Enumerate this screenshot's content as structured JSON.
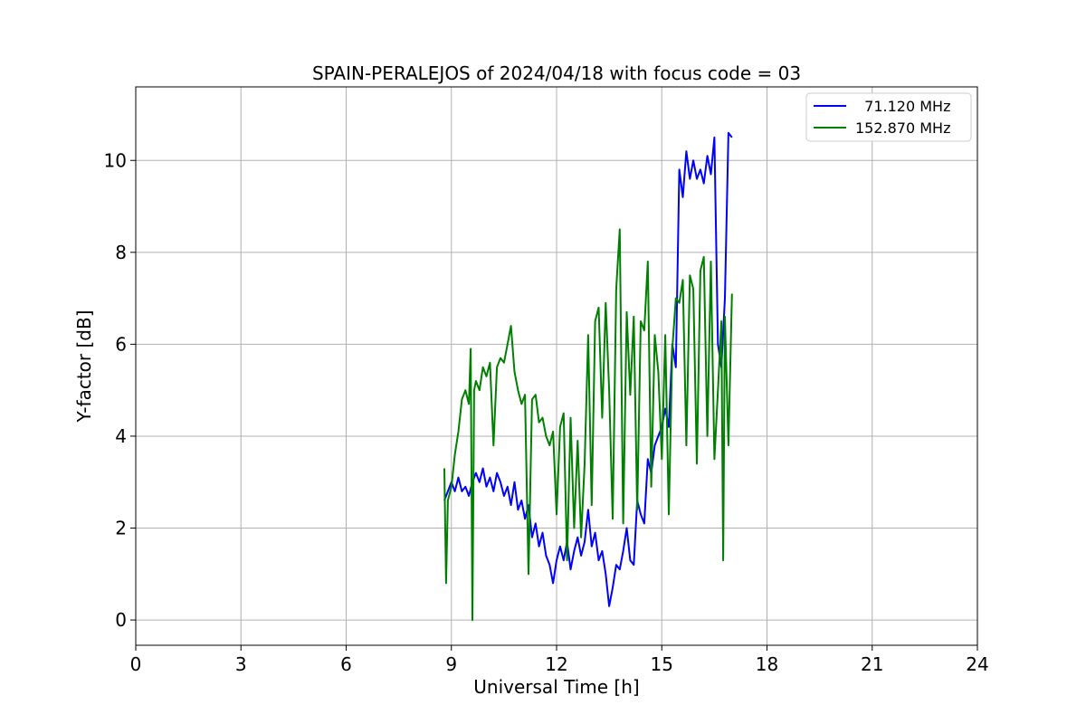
{
  "chart_data": {
    "type": "line",
    "title": "SPAIN-PERALEJOS of 2024/04/18 with focus code = 03",
    "xlabel": "Universal Time [h]",
    "ylabel": "Y-factor [dB]",
    "xlim": [
      0,
      24
    ],
    "ylim": [
      -0.55,
      11.6
    ],
    "xticks": [
      0,
      3,
      6,
      9,
      12,
      15,
      18,
      21,
      24
    ],
    "yticks": [
      0,
      2,
      4,
      6,
      8,
      10
    ],
    "grid": true,
    "legend_position": "top-right",
    "series": [
      {
        "name": "  71.120 MHz",
        "color": "#0000ff",
        "points": [
          [
            8.8,
            2.6
          ],
          [
            8.9,
            2.8
          ],
          [
            9.0,
            3.0
          ],
          [
            9.1,
            2.8
          ],
          [
            9.2,
            3.1
          ],
          [
            9.3,
            2.8
          ],
          [
            9.4,
            2.9
          ],
          [
            9.5,
            2.7
          ],
          [
            9.6,
            3.0
          ],
          [
            9.7,
            3.2
          ],
          [
            9.8,
            3.0
          ],
          [
            9.9,
            3.3
          ],
          [
            10.0,
            2.9
          ],
          [
            10.1,
            3.1
          ],
          [
            10.2,
            2.8
          ],
          [
            10.3,
            3.2
          ],
          [
            10.4,
            3.0
          ],
          [
            10.5,
            2.7
          ],
          [
            10.6,
            2.9
          ],
          [
            10.7,
            2.5
          ],
          [
            10.8,
            3.0
          ],
          [
            10.9,
            2.4
          ],
          [
            11.0,
            2.6
          ],
          [
            11.1,
            2.2
          ],
          [
            11.2,
            2.5
          ],
          [
            11.3,
            1.8
          ],
          [
            11.4,
            2.1
          ],
          [
            11.5,
            1.6
          ],
          [
            11.6,
            1.9
          ],
          [
            11.7,
            1.4
          ],
          [
            11.8,
            1.2
          ],
          [
            11.9,
            0.8
          ],
          [
            12.0,
            1.3
          ],
          [
            12.1,
            1.6
          ],
          [
            12.2,
            1.3
          ],
          [
            12.3,
            1.7
          ],
          [
            12.4,
            1.1
          ],
          [
            12.5,
            1.5
          ],
          [
            12.6,
            1.8
          ],
          [
            12.7,
            1.4
          ],
          [
            12.8,
            1.7
          ],
          [
            12.9,
            2.4
          ],
          [
            13.0,
            1.6
          ],
          [
            13.1,
            1.9
          ],
          [
            13.2,
            1.3
          ],
          [
            13.3,
            1.5
          ],
          [
            13.4,
            1.0
          ],
          [
            13.5,
            0.3
          ],
          [
            13.6,
            0.7
          ],
          [
            13.7,
            1.2
          ],
          [
            13.8,
            1.1
          ],
          [
            13.9,
            1.5
          ],
          [
            14.0,
            2.0
          ],
          [
            14.1,
            1.3
          ],
          [
            14.2,
            1.2
          ],
          [
            14.3,
            2.6
          ],
          [
            14.4,
            2.3
          ],
          [
            14.5,
            2.1
          ],
          [
            14.6,
            3.5
          ],
          [
            14.7,
            3.2
          ],
          [
            14.8,
            3.8
          ],
          [
            14.9,
            4.0
          ],
          [
            15.0,
            4.2
          ],
          [
            15.1,
            4.6
          ],
          [
            15.2,
            4.2
          ],
          [
            15.3,
            6.0
          ],
          [
            15.4,
            5.5
          ],
          [
            15.5,
            9.8
          ],
          [
            15.6,
            9.2
          ],
          [
            15.7,
            10.2
          ],
          [
            15.8,
            9.6
          ],
          [
            15.9,
            10.0
          ],
          [
            16.0,
            9.6
          ],
          [
            16.1,
            9.8
          ],
          [
            16.2,
            9.5
          ],
          [
            16.3,
            10.1
          ],
          [
            16.4,
            9.7
          ],
          [
            16.5,
            10.5
          ],
          [
            16.6,
            6.0
          ],
          [
            16.7,
            5.5
          ],
          [
            16.8,
            7.0
          ],
          [
            16.9,
            10.6
          ],
          [
            17.0,
            10.5
          ]
        ]
      },
      {
        "name": "152.870 MHz",
        "color": "#008000",
        "points": [
          [
            8.8,
            3.3
          ],
          [
            8.85,
            0.8
          ],
          [
            8.9,
            2.6
          ],
          [
            9.0,
            2.9
          ],
          [
            9.1,
            3.6
          ],
          [
            9.2,
            4.1
          ],
          [
            9.3,
            4.8
          ],
          [
            9.4,
            5.0
          ],
          [
            9.5,
            4.7
          ],
          [
            9.55,
            5.9
          ],
          [
            9.6,
            0.0
          ],
          [
            9.65,
            5.0
          ],
          [
            9.7,
            5.2
          ],
          [
            9.8,
            5.0
          ],
          [
            9.9,
            5.5
          ],
          [
            10.0,
            5.3
          ],
          [
            10.1,
            5.6
          ],
          [
            10.2,
            3.8
          ],
          [
            10.3,
            5.5
          ],
          [
            10.4,
            5.7
          ],
          [
            10.5,
            5.6
          ],
          [
            10.6,
            6.0
          ],
          [
            10.7,
            6.4
          ],
          [
            10.8,
            5.4
          ],
          [
            10.9,
            5.0
          ],
          [
            11.0,
            4.7
          ],
          [
            11.1,
            4.9
          ],
          [
            11.2,
            1.0
          ],
          [
            11.3,
            4.8
          ],
          [
            11.4,
            4.9
          ],
          [
            11.5,
            4.3
          ],
          [
            11.6,
            4.4
          ],
          [
            11.7,
            4.0
          ],
          [
            11.8,
            3.8
          ],
          [
            11.9,
            4.1
          ],
          [
            12.0,
            2.3
          ],
          [
            12.1,
            4.2
          ],
          [
            12.2,
            4.5
          ],
          [
            12.3,
            1.3
          ],
          [
            12.4,
            4.4
          ],
          [
            12.5,
            2.0
          ],
          [
            12.6,
            3.9
          ],
          [
            12.7,
            1.8
          ],
          [
            12.8,
            3.4
          ],
          [
            12.9,
            6.2
          ],
          [
            13.0,
            2.5
          ],
          [
            13.1,
            6.5
          ],
          [
            13.2,
            6.8
          ],
          [
            13.3,
            4.4
          ],
          [
            13.4,
            6.9
          ],
          [
            13.5,
            5.0
          ],
          [
            13.6,
            2.2
          ],
          [
            13.7,
            7.2
          ],
          [
            13.8,
            8.5
          ],
          [
            13.9,
            2.1
          ],
          [
            14.0,
            6.7
          ],
          [
            14.1,
            4.9
          ],
          [
            14.2,
            6.6
          ],
          [
            14.3,
            2.4
          ],
          [
            14.4,
            6.5
          ],
          [
            14.5,
            6.3
          ],
          [
            14.6,
            7.8
          ],
          [
            14.7,
            2.9
          ],
          [
            14.8,
            6.2
          ],
          [
            14.9,
            5.4
          ],
          [
            15.0,
            3.5
          ],
          [
            15.1,
            6.2
          ],
          [
            15.2,
            2.3
          ],
          [
            15.3,
            5.9
          ],
          [
            15.4,
            7.0
          ],
          [
            15.5,
            6.9
          ],
          [
            15.6,
            7.4
          ],
          [
            15.7,
            3.8
          ],
          [
            15.8,
            7.5
          ],
          [
            15.9,
            7.2
          ],
          [
            16.0,
            3.4
          ],
          [
            16.1,
            7.6
          ],
          [
            16.2,
            7.9
          ],
          [
            16.3,
            4.0
          ],
          [
            16.4,
            7.8
          ],
          [
            16.5,
            3.5
          ],
          [
            16.6,
            5.0
          ],
          [
            16.7,
            6.5
          ],
          [
            16.75,
            1.3
          ],
          [
            16.8,
            6.6
          ],
          [
            16.9,
            3.8
          ],
          [
            17.0,
            7.1
          ]
        ]
      }
    ]
  }
}
